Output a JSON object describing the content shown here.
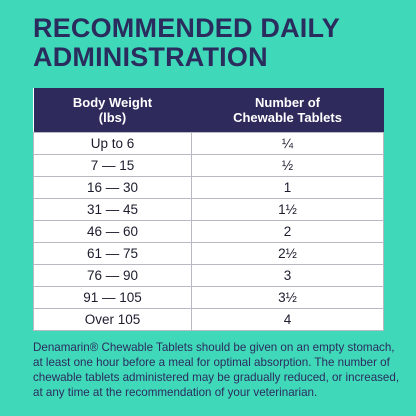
{
  "header": {
    "title": "RECOMMENDED DAILY ADMINISTRATION"
  },
  "table": {
    "columns": [
      "Body Weight (lbs)",
      "Number of Chewable Tablets"
    ],
    "rows": [
      [
        "Up to 6",
        "¼"
      ],
      [
        "7 — 15",
        "½"
      ],
      [
        "16 — 30",
        "1"
      ],
      [
        "31 — 45",
        "1½"
      ],
      [
        "46 — 60",
        "2"
      ],
      [
        "61 — 75",
        "2½"
      ],
      [
        "76 — 90",
        "3"
      ],
      [
        "91 — 105",
        "3½"
      ],
      [
        "Over 105",
        "4"
      ]
    ]
  },
  "footer": {
    "text": "Denamarin® Chewable Tablets should be given on an empty stomach, at least one hour before a meal for optimal absorption. The number of chewable tablets administered may be gradually reduced, or increased, at any time at the recommendation of your veterinarian."
  }
}
